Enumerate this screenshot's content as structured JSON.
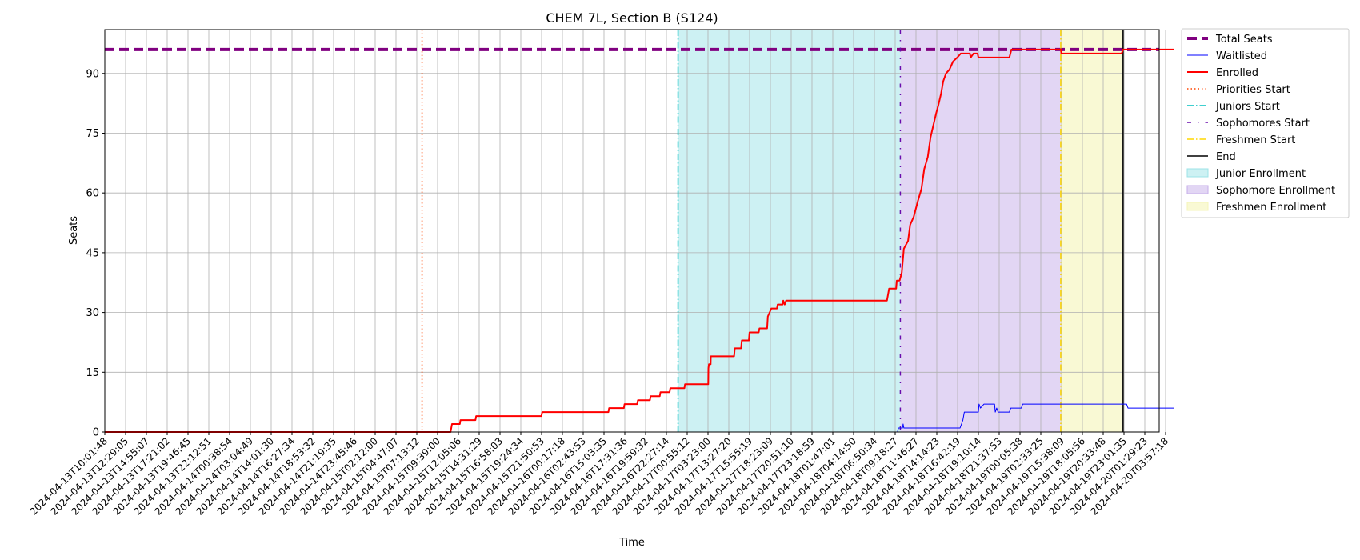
{
  "chart_data": {
    "type": "line",
    "title": "CHEM 7L, Section B (S124)",
    "xlabel": "Time",
    "ylabel": "Seats",
    "ylim": [
      0,
      101
    ],
    "yticks": [
      0,
      15,
      30,
      45,
      60,
      75,
      90
    ],
    "xlim": [
      "2024-04-13T10:01:48",
      "2024-04-20T05:00:00"
    ],
    "grid": true,
    "legend_position": "outside-right",
    "xticks": [
      "2024-04-13T10:01:48",
      "2024-04-13T12:29:05",
      "2024-04-13T14:55:07",
      "2024-04-13T17:21:02",
      "2024-04-13T19:46:45",
      "2024-04-13T22:12:51",
      "2024-04-14T00:38:54",
      "2024-04-14T03:04:49",
      "2024-04-14T14:01:30",
      "2024-04-14T16:27:34",
      "2024-04-14T18:53:32",
      "2024-04-14T21:19:35",
      "2024-04-14T23:45:46",
      "2024-04-15T02:12:00",
      "2024-04-15T04:47:07",
      "2024-04-15T07:13:12",
      "2024-04-15T09:39:00",
      "2024-04-15T12:05:06",
      "2024-04-15T14:31:29",
      "2024-04-15T16:58:03",
      "2024-04-15T19:24:34",
      "2024-04-15T21:50:53",
      "2024-04-16T00:17:18",
      "2024-04-16T02:43:53",
      "2024-04-16T15:03:35",
      "2024-04-16T17:31:36",
      "2024-04-16T19:59:32",
      "2024-04-16T22:27:14",
      "2024-04-17T00:55:12",
      "2024-04-17T03:23:00",
      "2024-04-17T13:27:20",
      "2024-04-17T15:55:19",
      "2024-04-17T18:23:09",
      "2024-04-17T20:51:10",
      "2024-04-17T23:18:59",
      "2024-04-18T01:47:01",
      "2024-04-18T04:14:50",
      "2024-04-18T06:50:34",
      "2024-04-18T09:18:27",
      "2024-04-18T11:46:27",
      "2024-04-18T14:14:23",
      "2024-04-18T16:42:19",
      "2024-04-18T19:10:14",
      "2024-04-18T21:37:53",
      "2024-04-19T00:05:38",
      "2024-04-19T02:33:25",
      "2024-04-19T15:38:09",
      "2024-04-19T18:05:56",
      "2024-04-19T20:33:48",
      "2024-04-19T23:01:35",
      "2024-04-20T01:29:23",
      "2024-04-20T03:57:18"
    ],
    "total_seats": 96,
    "events": {
      "priorities_start": "2024-04-15T07:50:00",
      "juniors_start": "2024-04-16T23:50:00",
      "sophomores_start": "2024-04-18T09:55:00",
      "freshmen_start": "2024-04-19T15:05:00",
      "end": "2024-04-19T22:55:00"
    },
    "series": [
      {
        "name": "Waitlisted",
        "color": "#0000ff",
        "points": [
          [
            "2024-04-13T10:01:48",
            0
          ],
          [
            "2024-04-18T09:35:00",
            0
          ],
          [
            "2024-04-18T09:42:00",
            1
          ],
          [
            "2024-04-18T10:10:00",
            1
          ],
          [
            "2024-04-18T10:15:00",
            2
          ],
          [
            "2024-04-18T10:20:00",
            1
          ],
          [
            "2024-04-18T17:00:00",
            1
          ],
          [
            "2024-04-18T17:20:00",
            3
          ],
          [
            "2024-04-18T17:30:00",
            5
          ],
          [
            "2024-04-18T19:10:00",
            5
          ],
          [
            "2024-04-18T19:15:00",
            7
          ],
          [
            "2024-04-18T19:25:00",
            6
          ],
          [
            "2024-04-18T19:50:00",
            7
          ],
          [
            "2024-04-18T21:05:00",
            7
          ],
          [
            "2024-04-18T21:10:00",
            5
          ],
          [
            "2024-04-18T21:20:00",
            6
          ],
          [
            "2024-04-18T21:30:00",
            5
          ],
          [
            "2024-04-18T22:50:00",
            5
          ],
          [
            "2024-04-18T23:00:00",
            6
          ],
          [
            "2024-04-19T00:15:00",
            6
          ],
          [
            "2024-04-19T00:25:00",
            7
          ],
          [
            "2024-04-19T23:20:00",
            7
          ],
          [
            "2024-04-19T23:30:00",
            6
          ],
          [
            "2024-04-20T05:00:00",
            6
          ]
        ]
      },
      {
        "name": "Enrolled",
        "color": "#ff0000",
        "points": [
          [
            "2024-04-13T10:01:48",
            0
          ],
          [
            "2024-04-15T11:10:00",
            0
          ],
          [
            "2024-04-15T11:20:00",
            2
          ],
          [
            "2024-04-15T12:15:00",
            2
          ],
          [
            "2024-04-15T12:20:00",
            3
          ],
          [
            "2024-04-15T14:05:00",
            3
          ],
          [
            "2024-04-15T14:10:00",
            4
          ],
          [
            "2024-04-15T21:50:00",
            4
          ],
          [
            "2024-04-15T21:55:00",
            5
          ],
          [
            "2024-04-16T15:35:00",
            5
          ],
          [
            "2024-04-16T15:40:00",
            6
          ],
          [
            "2024-04-16T17:25:00",
            6
          ],
          [
            "2024-04-16T17:30:00",
            7
          ],
          [
            "2024-04-16T19:00:00",
            7
          ],
          [
            "2024-04-16T19:05:00",
            8
          ],
          [
            "2024-04-16T20:30:00",
            8
          ],
          [
            "2024-04-16T20:35:00",
            9
          ],
          [
            "2024-04-16T21:40:00",
            9
          ],
          [
            "2024-04-16T21:45:00",
            10
          ],
          [
            "2024-04-16T22:50:00",
            10
          ],
          [
            "2024-04-16T22:55:00",
            11
          ],
          [
            "2024-04-17T00:35:00",
            11
          ],
          [
            "2024-04-17T00:40:00",
            12
          ],
          [
            "2024-04-17T03:30:00",
            12
          ],
          [
            "2024-04-17T03:35:00",
            16
          ],
          [
            "2024-04-17T03:50:00",
            17
          ],
          [
            "2024-04-17T04:40:00",
            17
          ],
          [
            "2024-04-17T04:45:00",
            19
          ],
          [
            "2024-04-17T14:05:00",
            19
          ],
          [
            "2024-04-17T14:10:00",
            21
          ],
          [
            "2024-04-17T14:55:00",
            21
          ],
          [
            "2024-04-17T15:00:00",
            23
          ],
          [
            "2024-04-17T15:50:00",
            23
          ],
          [
            "2024-04-17T15:55:00",
            25
          ],
          [
            "2024-04-17T17:00:00",
            25
          ],
          [
            "2024-04-17T17:05:00",
            26
          ],
          [
            "2024-04-17T18:00:00",
            26
          ],
          [
            "2024-04-17T18:05:00",
            29
          ],
          [
            "2024-04-17T18:30:00",
            31
          ],
          [
            "2024-04-17T19:10:00",
            31
          ],
          [
            "2024-04-17T19:15:00",
            32
          ],
          [
            "2024-04-17T19:50:00",
            32
          ],
          [
            "2024-04-17T19:55:00",
            33
          ],
          [
            "2024-04-17T20:05:00",
            32
          ],
          [
            "2024-04-17T20:15:00",
            33
          ],
          [
            "2024-04-18T08:20:00",
            33
          ],
          [
            "2024-04-18T08:35:00",
            36
          ],
          [
            "2024-04-18T09:25:00",
            36
          ],
          [
            "2024-04-18T09:30:00",
            38
          ],
          [
            "2024-04-18T09:50:00",
            38
          ],
          [
            "2024-04-18T10:05:00",
            40
          ],
          [
            "2024-04-18T10:20:00",
            46
          ],
          [
            "2024-04-18T10:50:00",
            48
          ],
          [
            "2024-04-18T11:05:00",
            52
          ],
          [
            "2024-04-18T11:30:00",
            54
          ],
          [
            "2024-04-18T12:00:00",
            58
          ],
          [
            "2024-04-18T12:25:00",
            61
          ],
          [
            "2024-04-18T12:45:00",
            66
          ],
          [
            "2024-04-18T13:10:00",
            69
          ],
          [
            "2024-04-18T13:30:00",
            74
          ],
          [
            "2024-04-18T13:50:00",
            77
          ],
          [
            "2024-04-18T14:10:00",
            80
          ],
          [
            "2024-04-18T14:25:00",
            82
          ],
          [
            "2024-04-18T14:45:00",
            85
          ],
          [
            "2024-04-18T15:00:00",
            88
          ],
          [
            "2024-04-18T15:20:00",
            90
          ],
          [
            "2024-04-18T15:45:00",
            91
          ],
          [
            "2024-04-18T16:10:00",
            93
          ],
          [
            "2024-04-18T16:40:00",
            94
          ],
          [
            "2024-04-18T17:05:00",
            95
          ],
          [
            "2024-04-18T18:10:00",
            95
          ],
          [
            "2024-04-18T18:15:00",
            94
          ],
          [
            "2024-04-18T18:35:00",
            95
          ],
          [
            "2024-04-18T19:05:00",
            95
          ],
          [
            "2024-04-18T19:10:00",
            94
          ],
          [
            "2024-04-18T22:50:00",
            94
          ],
          [
            "2024-04-18T23:05:00",
            96
          ],
          [
            "2024-04-19T15:20:00",
            96
          ],
          [
            "2024-04-19T15:25:00",
            95
          ],
          [
            "2024-04-19T22:45:00",
            95
          ],
          [
            "2024-04-19T22:55:00",
            96
          ],
          [
            "2024-04-20T05:00:00",
            96
          ]
        ]
      }
    ],
    "legend": [
      {
        "label": "Total Seats",
        "kind": "line",
        "color": "#800080",
        "dash": "12,6",
        "width": 4
      },
      {
        "label": "Waitlisted",
        "kind": "line",
        "color": "#0000ff",
        "dash": "",
        "width": 1
      },
      {
        "label": "Enrolled",
        "kind": "line",
        "color": "#ff0000",
        "dash": "",
        "width": 2
      },
      {
        "label": "Priorities Start",
        "kind": "line",
        "color": "#ff4500",
        "dash": "1.5,3",
        "width": 1.5
      },
      {
        "label": "Juniors Start",
        "kind": "line",
        "color": "#00bfbf",
        "dash": "8,3,1.5,3",
        "width": 1.5
      },
      {
        "label": "Sophomores Start",
        "kind": "line",
        "color": "#6a0dad",
        "dash": "5,8,1.5,8",
        "width": 1.5
      },
      {
        "label": "Freshmen Start",
        "kind": "line",
        "color": "#ffd700",
        "dash": "8,3,1.5,3",
        "width": 1.5
      },
      {
        "label": "End",
        "kind": "line",
        "color": "#000000",
        "dash": "",
        "width": 1.5
      },
      {
        "label": "Junior Enrollment",
        "kind": "patch",
        "color": "#9ce3e7",
        "opacity": 0.5
      },
      {
        "label": "Sophomore Enrollment",
        "kind": "patch",
        "color": "#c6aeea",
        "opacity": 0.5
      },
      {
        "label": "Freshmen Enrollment",
        "kind": "patch",
        "color": "#f5f5b8",
        "opacity": 0.6
      }
    ]
  }
}
